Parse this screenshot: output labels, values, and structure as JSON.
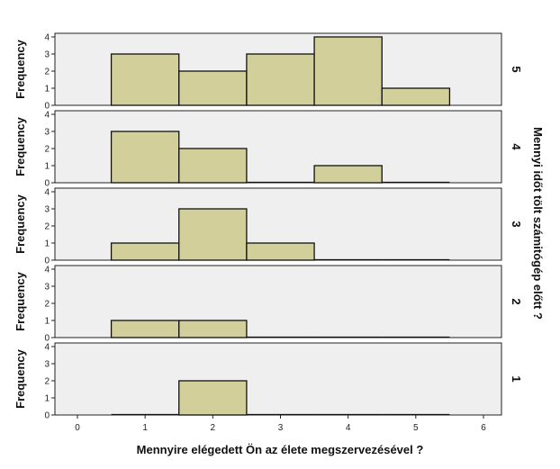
{
  "chart_data": {
    "type": "bar",
    "xlabel": "Mennyire elégedett Ön az élete megszervezésével ?",
    "ylabel": "Frequency",
    "facet_label": "Mennyi időt tölt számitógép előtt ?",
    "xlim": [
      0,
      6
    ],
    "xticks": [
      "0",
      "1",
      "2",
      "3",
      "4",
      "5",
      "6"
    ],
    "ylim": [
      0,
      4
    ],
    "yticks": [
      "0",
      "1",
      "2",
      "3",
      "4"
    ],
    "bins": [
      1,
      2,
      3,
      4,
      5
    ],
    "bar_color": "#d3cf9a",
    "panel_bg": "#efefef",
    "panels": [
      {
        "label": "5",
        "values": [
          3,
          2,
          3,
          4,
          1
        ]
      },
      {
        "label": "4",
        "values": [
          3,
          2,
          0,
          1,
          0
        ]
      },
      {
        "label": "3",
        "values": [
          1,
          3,
          1,
          0,
          0
        ]
      },
      {
        "label": "2",
        "values": [
          1,
          1,
          0,
          0,
          0
        ]
      },
      {
        "label": "1",
        "values": [
          0,
          2,
          0,
          0,
          0
        ]
      }
    ]
  }
}
